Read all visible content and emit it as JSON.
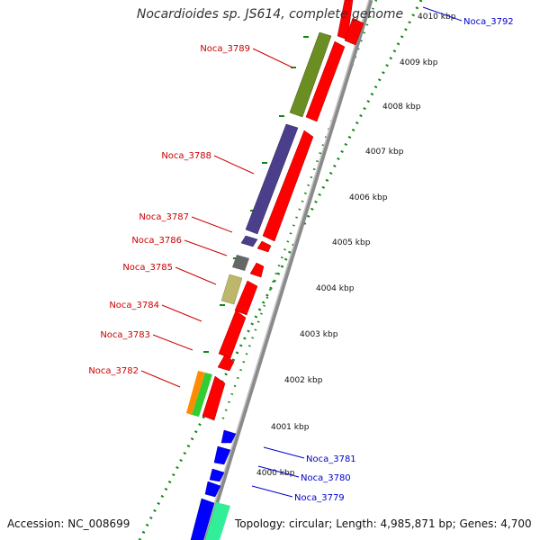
{
  "title": "Nocardioides sp. JS614, complete genome",
  "accession": "Accession: NC_008699",
  "summary": "Topology: circular; Length: 4,985,871 bp; Genes: 4,700",
  "colors": {
    "forward_label": "#cc0000",
    "reverse_label": "#0000cc",
    "backbone": "#888888",
    "gc_dots": "#118811"
  },
  "scale_ticks": [
    {
      "label": "4010 kbp"
    },
    {
      "label": "4009 kbp"
    },
    {
      "label": "4008 kbp"
    },
    {
      "label": "4007 kbp"
    },
    {
      "label": "4006 kbp"
    },
    {
      "label": "4005 kbp"
    },
    {
      "label": "4004 kbp"
    },
    {
      "label": "4003 kbp"
    },
    {
      "label": "4002 kbp"
    },
    {
      "label": "4001 kbp"
    },
    {
      "label": "4000 kbp"
    }
  ],
  "forward_genes": [
    {
      "label": "Noca_3789",
      "feature_color": "#6b8e23"
    },
    {
      "label": "Noca_3788",
      "feature_color": "#4b3f8c"
    },
    {
      "label": "Noca_3787",
      "feature_color": "#4b3f8c"
    },
    {
      "label": "Noca_3786",
      "feature_color": "#666666"
    },
    {
      "label": "Noca_3785",
      "feature_color": "#bdb76b"
    },
    {
      "label": "Noca_3784",
      "feature_color": ""
    },
    {
      "label": "Noca_3783",
      "feature_color": ""
    },
    {
      "label": "Noca_3782",
      "feature_color": "#ff8c00"
    }
  ],
  "reverse_genes": [
    {
      "label": "Noca_3792"
    },
    {
      "label": "Noca_3781"
    },
    {
      "label": "Noca_3780"
    },
    {
      "label": "Noca_3779"
    }
  ]
}
